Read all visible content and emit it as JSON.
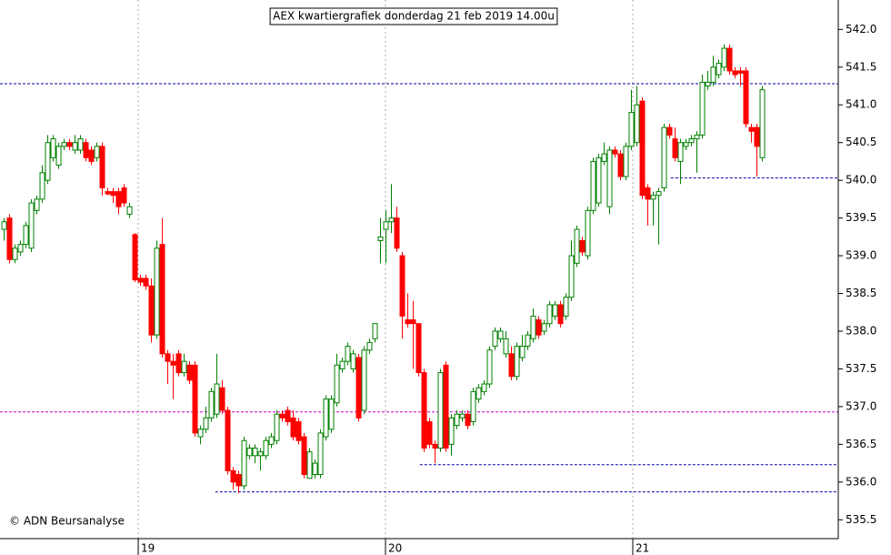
{
  "chart_data": {
    "type": "candlestick",
    "title": "AEX kwartiergrafiek donderdag 21 feb 2019 14.00u",
    "source": "© ADN Beursanalyse",
    "up_color": "#008000",
    "down_color": "#ff0000",
    "xlim": [
      -0.67,
      153
    ],
    "xticks": [
      {
        "value": 24.67,
        "label": "19"
      },
      {
        "value": 70,
        "label": "20"
      },
      {
        "value": 115.33,
        "label": "21"
      }
    ],
    "ylim": [
      535.25,
      542.39
    ],
    "yticks": [
      {
        "value": 542,
        "label": "542.0"
      },
      541.5,
      {
        "value": 541,
        "label": "541.0"
      },
      540.5,
      {
        "value": 540,
        "label": "540.0"
      },
      539.5,
      {
        "value": 539,
        "label": "539.0"
      },
      538.5,
      {
        "value": 538,
        "label": "538.0"
      },
      537.5,
      {
        "value": 537,
        "label": "537.0"
      },
      536.5,
      {
        "value": 536,
        "label": "536.0"
      },
      535.5
    ],
    "reference_lines": [
      {
        "value": 541.28,
        "from": -0.67,
        "color": "#0000aa"
      },
      {
        "value": 536.93,
        "from": -0.67,
        "color": "#cc00cc"
      },
      {
        "value": 540.03,
        "from": 122.3,
        "color": "#0000aa"
      },
      {
        "value": 536.23,
        "from": 76.3,
        "color": "#0000aa"
      },
      {
        "value": 535.87,
        "from": 38.8,
        "color": "#0000aa"
      }
    ],
    "open": [
      539.35,
      539.5,
      538.95,
      539.05,
      539.15,
      539.1,
      539.6,
      539.75,
      540.0,
      540.3,
      540.2,
      540.45,
      540.5,
      540.4,
      540.4,
      540.5,
      540.4,
      540.3,
      540.45,
      539.85,
      539.85,
      539.85,
      539.9,
      539.55,
      539.28,
      538.7,
      538.7,
      538.6,
      537.95,
      539.15,
      537.7,
      537.6,
      537.7,
      537.45,
      537.55,
      537.55,
      536.6,
      536.7,
      536.85,
      536.9,
      537.25,
      536.95,
      536.15,
      536.1,
      535.95,
      536.35,
      536.35,
      536.35,
      536.35,
      536.5,
      536.55,
      536.9,
      536.95,
      536.85,
      536.8,
      536.6,
      536.05,
      536.1,
      536.1,
      536.6,
      536.7,
      537.05,
      537.5,
      537.6,
      537.5,
      537.65,
      536.95,
      537.75,
      537.9,
      539.2,
      539.35,
      539.45,
      539.5,
      539.0,
      538.15,
      538.15,
      538.1,
      537.45,
      536.8,
      536.5,
      536.45,
      537.55,
      536.5,
      536.75,
      536.85,
      536.9,
      536.8,
      537.1,
      537.2,
      537.3,
      537.8,
      537.9,
      537.7,
      537.7,
      537.4,
      537.65,
      537.8,
      537.9,
      538.15,
      538.0,
      538.1,
      538.2,
      538.35,
      538.2,
      538.45,
      538.9,
      539.2,
      539.0,
      539.6,
      539.7,
      540.25,
      539.65,
      540.4,
      540.35,
      540.05,
      540.45,
      540.5,
      541.05,
      539.9,
      539.75,
      539.8,
      539.9,
      540.7,
      540.55,
      540.25,
      540.45,
      540.5,
      540.55,
      540.6,
      541.25,
      541.3,
      541.4,
      541.5,
      541.75,
      541.45,
      541.45,
      541.45,
      540.7,
      540.7,
      540.3
    ],
    "high": [
      539.5,
      539.55,
      539.15,
      539.2,
      539.45,
      539.75,
      539.8,
      540.2,
      540.6,
      540.6,
      540.5,
      540.55,
      540.55,
      540.6,
      540.6,
      540.55,
      540.45,
      540.5,
      540.5,
      539.9,
      539.9,
      539.9,
      539.95,
      539.7,
      539.3,
      538.75,
      538.75,
      538.7,
      539.2,
      539.5,
      537.75,
      537.7,
      537.75,
      537.7,
      537.6,
      537.6,
      536.75,
      537.0,
      537.25,
      537.7,
      537.35,
      537.0,
      536.2,
      536.15,
      536.6,
      536.5,
      536.5,
      536.45,
      536.6,
      536.65,
      536.95,
      536.95,
      537.0,
      536.95,
      536.85,
      536.65,
      536.45,
      536.3,
      536.7,
      537.15,
      537.15,
      537.7,
      537.65,
      537.85,
      537.75,
      537.7,
      537.8,
      537.9,
      538.1,
      539.5,
      539.6,
      539.95,
      539.65,
      539.05,
      538.5,
      538.4,
      538.1,
      537.5,
      536.85,
      536.55,
      537.5,
      537.6,
      536.9,
      536.95,
      536.95,
      536.95,
      537.25,
      537.3,
      537.35,
      537.8,
      538.05,
      538.05,
      538.0,
      537.8,
      537.85,
      537.95,
      538.0,
      538.3,
      538.2,
      538.15,
      538.4,
      538.4,
      538.4,
      538.5,
      539.2,
      539.4,
      539.25,
      539.65,
      540.3,
      540.35,
      540.5,
      540.45,
      540.45,
      540.4,
      540.5,
      541.2,
      541.25,
      541.1,
      539.95,
      539.85,
      539.9,
      540.75,
      540.75,
      540.7,
      540.55,
      540.55,
      540.6,
      540.65,
      541.4,
      541.45,
      541.65,
      541.6,
      541.8,
      541.8,
      541.5,
      541.5,
      541.5,
      540.75,
      540.75,
      541.25
    ],
    "low": [
      539.2,
      538.9,
      538.9,
      539.0,
      539.1,
      539.05,
      539.55,
      539.7,
      539.95,
      540.25,
      540.15,
      540.4,
      540.4,
      540.35,
      540.35,
      540.25,
      540.2,
      540.25,
      539.8,
      539.8,
      539.7,
      539.55,
      539.65,
      539.5,
      538.65,
      538.6,
      538.55,
      537.85,
      537.9,
      537.65,
      537.3,
      537.1,
      537.4,
      537.4,
      537.3,
      536.6,
      536.5,
      536.65,
      536.8,
      536.85,
      536.9,
      536.1,
      535.9,
      535.85,
      535.9,
      536.3,
      536.25,
      536.15,
      536.3,
      536.45,
      536.5,
      536.8,
      536.75,
      536.55,
      536.5,
      536.05,
      536.05,
      536.05,
      536.05,
      536.55,
      536.65,
      537.0,
      537.45,
      537.55,
      537.45,
      536.8,
      536.9,
      537.7,
      537.85,
      538.9,
      538.9,
      539.3,
      539.05,
      537.9,
      538.05,
      537.5,
      537.4,
      536.4,
      536.45,
      536.25,
      536.4,
      536.4,
      536.35,
      536.7,
      536.8,
      536.7,
      536.75,
      537.05,
      537.15,
      537.25,
      537.75,
      537.85,
      537.65,
      537.35,
      537.35,
      537.6,
      537.75,
      537.85,
      537.9,
      537.95,
      538.05,
      538.15,
      538.05,
      538.15,
      538.4,
      538.85,
      539.0,
      538.95,
      539.55,
      539.65,
      540.2,
      539.55,
      540.3,
      540.0,
      540.0,
      540.4,
      540.45,
      539.75,
      539.4,
      539.4,
      539.15,
      539.85,
      540.55,
      540.25,
      539.95,
      540.4,
      540.45,
      540.1,
      540.55,
      541.2,
      541.25,
      541.35,
      541.45,
      541.4,
      541.35,
      541.25,
      540.7,
      540.5,
      540.05,
      540.25
    ],
    "close": [
      539.45,
      538.95,
      539.1,
      539.15,
      539.4,
      539.7,
      539.75,
      540.1,
      540.5,
      540.55,
      540.45,
      540.5,
      540.45,
      540.5,
      540.55,
      540.3,
      540.25,
      540.45,
      539.9,
      539.82,
      539.8,
      539.65,
      539.7,
      539.65,
      538.68,
      538.65,
      538.6,
      537.95,
      539.1,
      537.7,
      537.6,
      537.55,
      537.45,
      537.6,
      537.35,
      536.65,
      536.7,
      536.85,
      537.2,
      537.3,
      536.95,
      536.15,
      536.0,
      535.95,
      536.55,
      536.45,
      536.45,
      536.4,
      536.55,
      536.6,
      536.9,
      536.85,
      536.8,
      536.6,
      536.55,
      536.1,
      536.4,
      536.25,
      536.65,
      537.1,
      537.1,
      537.55,
      537.6,
      537.8,
      537.7,
      536.85,
      537.75,
      537.85,
      538.1,
      539.25,
      539.45,
      539.5,
      539.1,
      538.2,
      538.1,
      538.1,
      537.45,
      536.45,
      536.5,
      536.45,
      537.45,
      536.45,
      536.85,
      536.9,
      536.9,
      536.75,
      537.2,
      537.25,
      537.3,
      537.75,
      538.0,
      538.0,
      537.9,
      537.4,
      537.8,
      537.8,
      537.95,
      538.2,
      537.95,
      538.1,
      538.35,
      538.35,
      538.1,
      538.45,
      539.0,
      539.35,
      539.05,
      539.6,
      540.25,
      540.3,
      540.35,
      540.4,
      540.35,
      540.05,
      540.45,
      540.9,
      541.0,
      539.8,
      539.75,
      539.8,
      539.85,
      540.7,
      540.6,
      540.3,
      540.5,
      540.5,
      540.55,
      540.6,
      541.3,
      541.3,
      541.5,
      541.55,
      541.75,
      541.45,
      541.4,
      541.42,
      540.75,
      540.65,
      540.45,
      541.2
    ]
  }
}
